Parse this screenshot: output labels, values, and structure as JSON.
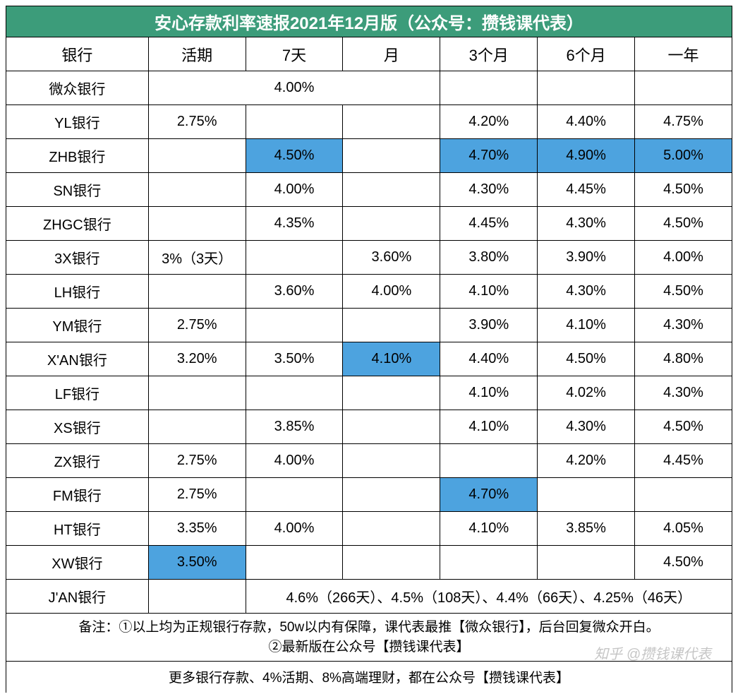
{
  "title": "安心存款利率速报2021年12月版（公众号：攒钱课代表）",
  "columns": [
    "银行",
    "活期",
    "7天",
    "月",
    "3个月",
    "6个月",
    "一年"
  ],
  "colors": {
    "header_bg": "#3c9c7a",
    "header_text": "#ffffff",
    "highlight_bg": "#4da3df",
    "border": "#000000",
    "cell_bg": "#ffffff"
  },
  "rows": [
    {
      "bank": "微众银行",
      "cells": [
        {
          "v": "4.00%",
          "colspan": 3
        },
        {
          "v": ""
        },
        {
          "v": ""
        },
        {
          "v": ""
        }
      ]
    },
    {
      "bank": "YL银行",
      "cells": [
        {
          "v": "2.75%"
        },
        {
          "v": ""
        },
        {
          "v": ""
        },
        {
          "v": "4.20%"
        },
        {
          "v": "4.40%"
        },
        {
          "v": "4.75%"
        }
      ]
    },
    {
      "bank": "ZHB银行",
      "cells": [
        {
          "v": ""
        },
        {
          "v": "4.50%",
          "hl": true
        },
        {
          "v": ""
        },
        {
          "v": "4.70%",
          "hl": true
        },
        {
          "v": "4.90%",
          "hl": true
        },
        {
          "v": "5.00%",
          "hl": true
        }
      ]
    },
    {
      "bank": "SN银行",
      "cells": [
        {
          "v": ""
        },
        {
          "v": "4.00%"
        },
        {
          "v": ""
        },
        {
          "v": "4.30%"
        },
        {
          "v": "4.45%"
        },
        {
          "v": "4.50%"
        }
      ]
    },
    {
      "bank": "ZHGC银行",
      "cells": [
        {
          "v": ""
        },
        {
          "v": "4.35%"
        },
        {
          "v": ""
        },
        {
          "v": "4.45%"
        },
        {
          "v": "4.30%"
        },
        {
          "v": "4.50%"
        }
      ]
    },
    {
      "bank": "3X银行",
      "cells": [
        {
          "v": "3%（3天）"
        },
        {
          "v": ""
        },
        {
          "v": "3.60%"
        },
        {
          "v": "3.80%"
        },
        {
          "v": "3.90%"
        },
        {
          "v": "4.00%"
        }
      ]
    },
    {
      "bank": "LH银行",
      "cells": [
        {
          "v": ""
        },
        {
          "v": "3.60%"
        },
        {
          "v": "4.00%"
        },
        {
          "v": "4.10%"
        },
        {
          "v": "4.30%"
        },
        {
          "v": "4.50%"
        }
      ]
    },
    {
      "bank": "YM银行",
      "cells": [
        {
          "v": "2.75%"
        },
        {
          "v": ""
        },
        {
          "v": ""
        },
        {
          "v": "3.90%"
        },
        {
          "v": "4.10%"
        },
        {
          "v": "4.30%"
        }
      ]
    },
    {
      "bank": "X'AN银行",
      "cells": [
        {
          "v": "3.20%"
        },
        {
          "v": "3.50%"
        },
        {
          "v": "4.10%",
          "hl": true
        },
        {
          "v": "4.40%"
        },
        {
          "v": "4.50%"
        },
        {
          "v": "4.80%"
        }
      ]
    },
    {
      "bank": "LF银行",
      "cells": [
        {
          "v": ""
        },
        {
          "v": ""
        },
        {
          "v": ""
        },
        {
          "v": "4.10%"
        },
        {
          "v": "4.02%"
        },
        {
          "v": "4.30%"
        }
      ]
    },
    {
      "bank": "XS银行",
      "cells": [
        {
          "v": ""
        },
        {
          "v": "3.85%"
        },
        {
          "v": ""
        },
        {
          "v": "4.10%"
        },
        {
          "v": "4.30%"
        },
        {
          "v": "4.50%"
        }
      ]
    },
    {
      "bank": "ZX银行",
      "cells": [
        {
          "v": "2.75%"
        },
        {
          "v": "4.00%"
        },
        {
          "v": ""
        },
        {
          "v": ""
        },
        {
          "v": "4.20%"
        },
        {
          "v": "4.45%"
        }
      ]
    },
    {
      "bank": "FM银行",
      "cells": [
        {
          "v": "2.75%"
        },
        {
          "v": ""
        },
        {
          "v": ""
        },
        {
          "v": "4.70%",
          "hl": true
        },
        {
          "v": ""
        },
        {
          "v": ""
        }
      ]
    },
    {
      "bank": "HT银行",
      "cells": [
        {
          "v": "3.35%"
        },
        {
          "v": "4.00%"
        },
        {
          "v": ""
        },
        {
          "v": "4.10%"
        },
        {
          "v": "3.85%"
        },
        {
          "v": "4.05%"
        }
      ]
    },
    {
      "bank": "XW银行",
      "cells": [
        {
          "v": "3.50%",
          "hl": true
        },
        {
          "v": ""
        },
        {
          "v": ""
        },
        {
          "v": ""
        },
        {
          "v": ""
        },
        {
          "v": "4.50%"
        }
      ]
    },
    {
      "bank": "J'AN银行",
      "cells": [
        {
          "v": ""
        },
        {
          "v": "4.6%（266天）、4.5%（108天）、4.4%（66天）、4.25%（46天）",
          "colspan": 5
        }
      ]
    }
  ],
  "note_line1": "备注：①以上均为正规银行存款，50w以内有保障，课代表最推【微众银行】，后台回复微众开白。",
  "note_line2": "②最新版在公众号【攒钱课代表】",
  "footer": "更多银行存款、4%活期、8%高端理财，都在公众号【攒钱课代表】",
  "watermark": "知乎 @攒钱课代表"
}
